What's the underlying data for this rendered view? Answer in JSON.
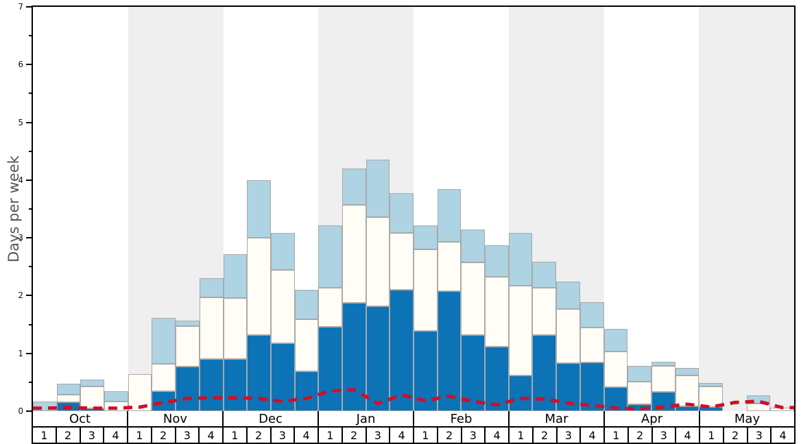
{
  "chart": {
    "y_axis": {
      "label": "Days per week",
      "tick_labels": [
        "0",
        "1",
        "2",
        "3",
        "4",
        "5",
        "6",
        "7"
      ],
      "ymax": 7,
      "minor_tick_step": 0.5
    },
    "x_axis": {
      "months": [
        "Oct",
        "Nov",
        "Dec",
        "Jan",
        "Feb",
        "Mar",
        "Apr",
        "May"
      ],
      "week_labels": [
        "1",
        "2",
        "3",
        "4"
      ]
    },
    "colors": {
      "dark_blue": "#0d73b7",
      "light_blue": "#aed3e2",
      "white_bar": "#fffdf5",
      "bar_border": "#a9a9a9",
      "red_line": "#d00f28",
      "month_band": "#efefef",
      "axis": "#000000",
      "ylabel_text": "#555555"
    }
  },
  "chart_data": {
    "type": "bar",
    "stacked": true,
    "title": "",
    "xlabel": "",
    "ylabel": "Days per week",
    "ylim": [
      0,
      7
    ],
    "grid": "off",
    "legend": "none",
    "weeks_per_month": 4,
    "categories": [
      "Oct-1",
      "Oct-2",
      "Oct-3",
      "Oct-4",
      "Nov-1",
      "Nov-2",
      "Nov-3",
      "Nov-4",
      "Dec-1",
      "Dec-2",
      "Dec-3",
      "Dec-4",
      "Jan-1",
      "Jan-2",
      "Jan-3",
      "Jan-4",
      "Feb-1",
      "Feb-2",
      "Feb-3",
      "Feb-4",
      "Mar-1",
      "Mar-2",
      "Mar-3",
      "Mar-4",
      "Apr-1",
      "Apr-2",
      "Apr-3",
      "Apr-4",
      "May-1",
      "May-2",
      "May-3",
      "May-4"
    ],
    "series": [
      {
        "name": "dark-blue-bottom-segment",
        "color": "#0d73b7",
        "values": [
          0,
          0.15,
          0.05,
          0,
          0,
          0.34,
          0.77,
          0.9,
          0.9,
          1.32,
          1.18,
          0.69,
          1.46,
          1.88,
          1.82,
          2.1,
          1.39,
          2.08,
          1.32,
          1.12,
          0.62,
          1.32,
          0.83,
          0.84,
          0.42,
          0.12,
          0.33,
          0.08,
          0.07,
          0,
          0,
          0
        ]
      },
      {
        "name": "white-middle-segment",
        "color": "#fffdf5",
        "values": [
          0,
          0.13,
          0.38,
          0.17,
          0.64,
          0.48,
          0.7,
          1.07,
          1.06,
          1.68,
          1.26,
          0.9,
          0.68,
          1.69,
          1.54,
          0.98,
          1.41,
          0.85,
          1.26,
          1.2,
          1.55,
          0.82,
          0.94,
          0.61,
          0.61,
          0.39,
          0.45,
          0.54,
          0.36,
          0,
          0.13,
          0.06
        ]
      },
      {
        "name": "light-blue-top-segment",
        "color": "#aed3e2",
        "values": [
          0.17,
          0.2,
          0.12,
          0.17,
          0,
          0.79,
          0.1,
          0.33,
          0.76,
          1.0,
          0.64,
          0.51,
          1.08,
          0.63,
          0.99,
          0.69,
          0.41,
          0.92,
          0.56,
          0.55,
          0.91,
          0.45,
          0.47,
          0.44,
          0.39,
          0.27,
          0.07,
          0.13,
          0.06,
          0,
          0.14,
          0
        ]
      }
    ],
    "line_series": {
      "name": "red-dashed-line",
      "color": "#d00f28",
      "style": "dashed",
      "values": [
        0.05,
        0.06,
        0.05,
        0.05,
        0.07,
        0.15,
        0.22,
        0.23,
        0.23,
        0.22,
        0.17,
        0.22,
        0.35,
        0.37,
        0.13,
        0.28,
        0.18,
        0.26,
        0.17,
        0.11,
        0.22,
        0.21,
        0.14,
        0.1,
        0.05,
        0.04,
        0.07,
        0.12,
        0.07,
        0.15,
        0.17,
        0.06
      ]
    },
    "background_bands": {
      "months": [
        "Nov",
        "Jan",
        "Mar",
        "May"
      ],
      "color": "#efefef"
    }
  }
}
